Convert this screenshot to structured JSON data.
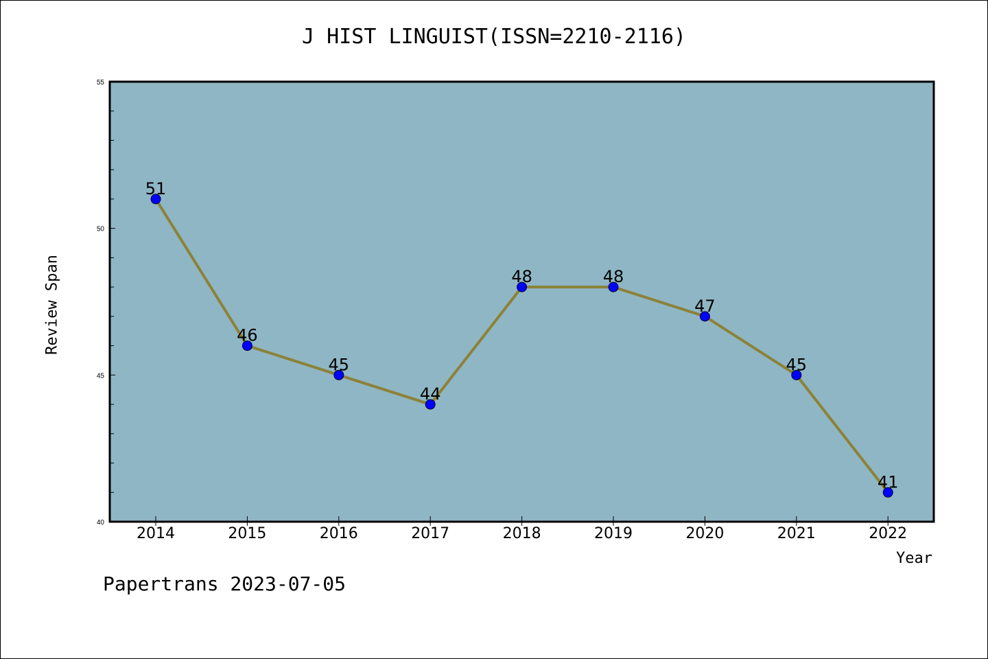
{
  "chart_data": {
    "type": "line",
    "title": "J HIST LINGUIST(ISSN=2210-2116)",
    "xlabel": "Year",
    "ylabel": "Review Span",
    "categories": [
      "2014",
      "2015",
      "2016",
      "2017",
      "2018",
      "2019",
      "2020",
      "2021",
      "2022"
    ],
    "series": [
      {
        "values": [
          51,
          46,
          45,
          44,
          48,
          48,
          47,
          45,
          41
        ]
      }
    ],
    "data_labels": [
      "51",
      "46",
      "45",
      "44",
      "48",
      "48",
      "47",
      "45",
      "41"
    ],
    "ylim": [
      40,
      55
    ],
    "yticks": [
      "40",
      "45",
      "50",
      "55"
    ],
    "grid": false,
    "colors": {
      "plot_background": "#8fb6c4",
      "line": "#8b8238",
      "marker": "#0000ff"
    }
  },
  "footer": "Papertrans 2023-07-05"
}
